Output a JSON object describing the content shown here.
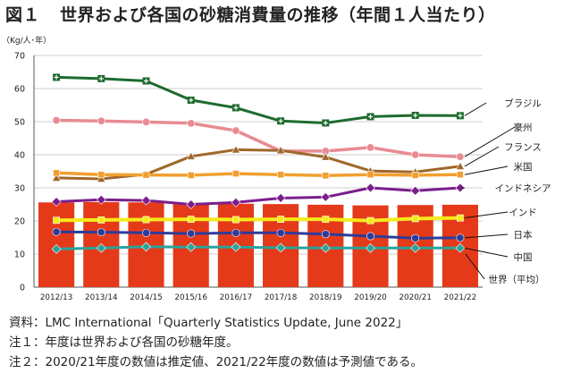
{
  "figure": {
    "number": "図１",
    "title": "世界および各国の砂糖消費量の推移（年間１人当たり）"
  },
  "notes": [
    "資料：LMC International「Quarterly Statistics Update, June 2022」",
    "注１：年度は世界および各国の砂糖年度。",
    "注２：2020/21年度の数値は推定値、2021/22年度の数値は予測値である。"
  ],
  "colors": {
    "brazil": "#1e6b2e",
    "australia": "#e88b92",
    "france": "#a0672a",
    "usa": "#f0a030",
    "indonesia": "#7a1f8c",
    "india": "#f5ea1a",
    "japan": "#2f3b9a",
    "china": "#2aa39a",
    "world_bar": "#e43a1a"
  },
  "chart_data": {
    "type": "line",
    "unit_label": "（Kg/人･年）",
    "categories": [
      "2012/13",
      "2013/14",
      "2014/15",
      "2015/16",
      "2016/17",
      "2017/18",
      "2018/19",
      "2019/20",
      "2020/21",
      "2021/22"
    ],
    "ylim": [
      0,
      70
    ],
    "yticks": [
      0,
      10,
      20,
      30,
      40,
      50,
      60,
      70
    ],
    "grid": true,
    "bar_series": {
      "name": "世界（平均）",
      "values": [
        25.6,
        25.7,
        25.6,
        25.2,
        25.2,
        25.1,
        24.9,
        24.7,
        24.8,
        24.9
      ]
    },
    "series": [
      {
        "name": "ブラジル",
        "key": "brazil",
        "marker": "plus",
        "values": [
          63.4,
          63.0,
          62.3,
          56.5,
          54.2,
          50.2,
          49.6,
          51.5,
          51.9,
          51.8
        ]
      },
      {
        "name": "豪州",
        "key": "australia",
        "marker": "circle",
        "values": [
          50.4,
          50.2,
          49.9,
          49.5,
          47.3,
          41.1,
          41.1,
          42.2,
          40.0,
          39.4
        ]
      },
      {
        "name": "フランス",
        "key": "france",
        "marker": "triangle",
        "values": [
          33.0,
          32.7,
          34.1,
          39.5,
          41.5,
          41.3,
          39.3,
          35.1,
          34.8,
          36.5
        ]
      },
      {
        "name": "米国",
        "key": "usa",
        "marker": "square",
        "values": [
          34.5,
          34.0,
          33.9,
          33.8,
          34.3,
          34.0,
          33.7,
          34.0,
          33.8,
          34.0
        ]
      },
      {
        "name": "インドネシア",
        "key": "indonesia",
        "marker": "diamond",
        "values": [
          25.8,
          26.4,
          26.2,
          25.0,
          25.6,
          26.9,
          27.2,
          30.0,
          29.1,
          30.0
        ]
      },
      {
        "name": "インド",
        "key": "india",
        "marker": "square",
        "values": [
          20.2,
          20.3,
          20.4,
          20.5,
          20.4,
          20.5,
          20.5,
          20.1,
          20.7,
          20.9
        ]
      },
      {
        "name": "日本",
        "key": "japan",
        "marker": "circle",
        "values": [
          16.7,
          16.6,
          16.4,
          16.2,
          16.4,
          16.4,
          16.0,
          15.4,
          14.8,
          14.9
        ]
      },
      {
        "name": "中国",
        "key": "china",
        "marker": "diamond",
        "values": [
          11.5,
          11.8,
          12.2,
          12.1,
          12.1,
          11.9,
          11.8,
          11.8,
          11.8,
          11.8
        ]
      }
    ],
    "legend_order": [
      "brazil",
      "australia",
      "france",
      "usa",
      "indonesia",
      "india",
      "japan",
      "china",
      "world"
    ]
  }
}
